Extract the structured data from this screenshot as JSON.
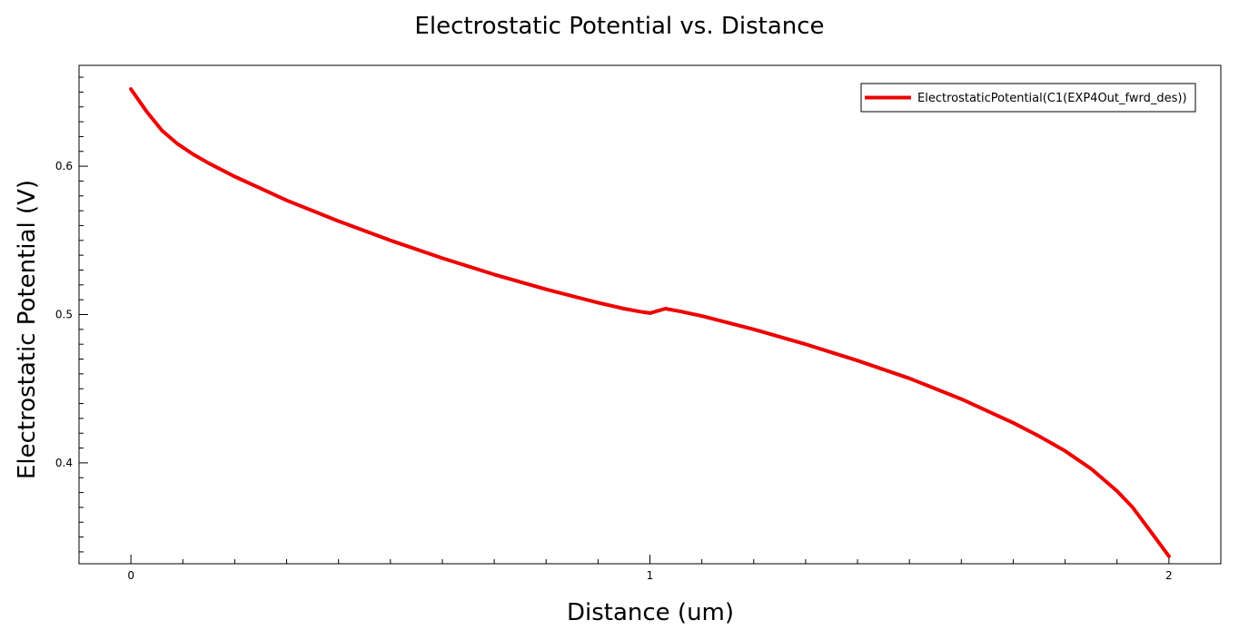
{
  "chart_data": {
    "type": "line",
    "title": "Electrostatic Potential vs. Distance",
    "xlabel": "Distance (um)",
    "ylabel": "Electrostatic Potential (V)",
    "xlim": [
      -0.1,
      2.1
    ],
    "ylim": [
      0.332,
      0.668
    ],
    "x_ticks": [
      0,
      1,
      2
    ],
    "x_tick_labels": [
      "0",
      "1",
      "2"
    ],
    "y_ticks": [
      0.4,
      0.5,
      0.6
    ],
    "y_tick_labels": [
      "0.4",
      "0.5",
      "0.6"
    ],
    "grid": false,
    "legend_position": "top-right",
    "series": [
      {
        "name": "ElectrostaticPotential(C1(EXP4Out_fwrd_des))",
        "color": "#ee0000",
        "x": [
          0.0,
          0.03,
          0.06,
          0.09,
          0.12,
          0.15,
          0.2,
          0.25,
          0.3,
          0.35,
          0.4,
          0.5,
          0.6,
          0.7,
          0.8,
          0.9,
          0.95,
          0.98,
          1.0,
          1.03,
          1.06,
          1.1,
          1.2,
          1.3,
          1.4,
          1.5,
          1.6,
          1.7,
          1.75,
          1.8,
          1.85,
          1.9,
          1.93,
          1.96,
          2.0
        ],
        "y": [
          0.652,
          0.637,
          0.624,
          0.615,
          0.608,
          0.602,
          0.593,
          0.585,
          0.577,
          0.57,
          0.563,
          0.55,
          0.538,
          0.527,
          0.517,
          0.508,
          0.504,
          0.502,
          0.501,
          0.504,
          0.502,
          0.499,
          0.49,
          0.48,
          0.469,
          0.457,
          0.443,
          0.427,
          0.418,
          0.408,
          0.396,
          0.381,
          0.37,
          0.356,
          0.337
        ]
      }
    ]
  }
}
